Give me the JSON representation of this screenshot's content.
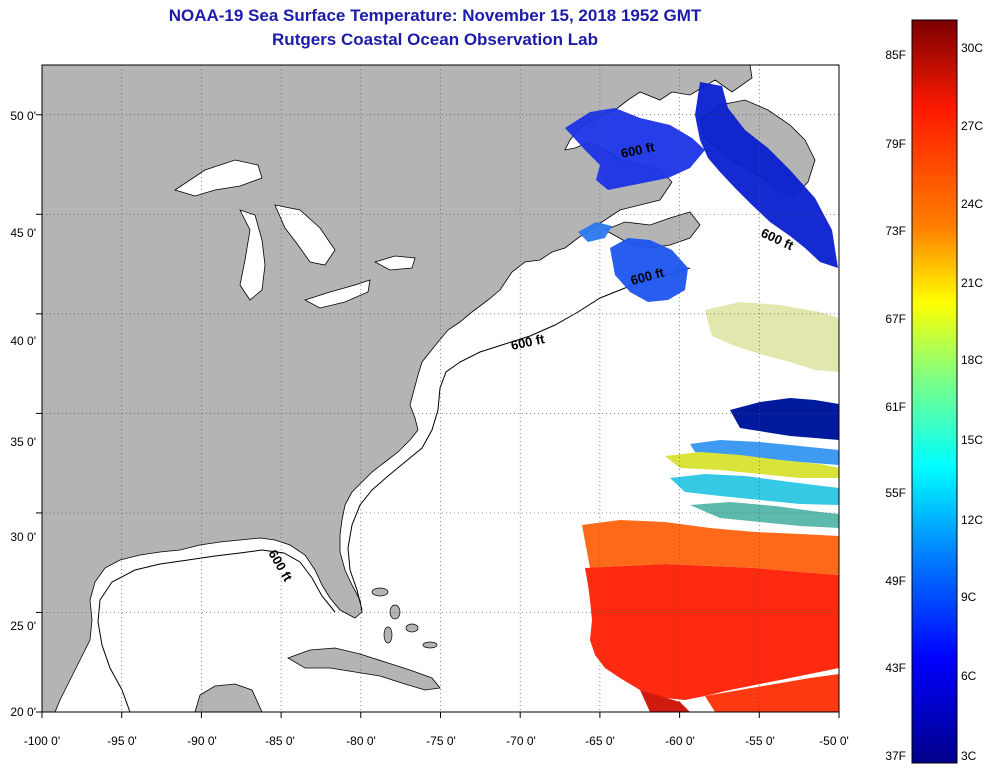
{
  "title": {
    "line1": "NOAA-19 Sea Surface Temperature:  November 15, 2018 1952 GMT",
    "line2": "Rutgers Coastal Ocean Observation Lab"
  },
  "map": {
    "lon_range": [
      -100,
      -50
    ],
    "lat_range": [
      20,
      52.5
    ],
    "x_ticks": [
      "-100 0'",
      "-95 0'",
      "-90 0'",
      "-85 0'",
      "-80 0'",
      "-75 0'",
      "-70 0'",
      "-65 0'",
      "-60 0'",
      "-55 0'",
      "-50 0'"
    ],
    "y_ticks": [
      "20 0'",
      "25 0'",
      "30 0'",
      "35 0'",
      "40 0'",
      "45 0'",
      "50 0'"
    ],
    "contour_label": "600 ft",
    "land_color": "#b4b4b4",
    "grid": true
  },
  "colorbar": {
    "fahrenheit": [
      "85F",
      "79F",
      "73F",
      "67F",
      "61F",
      "55F",
      "49F",
      "43F",
      "37F"
    ],
    "celsius": [
      "30C",
      "27C",
      "24C",
      "21C",
      "18C",
      "15C",
      "12C",
      "9C",
      "6C",
      "3C"
    ],
    "colors": [
      "#7a0000",
      "#ff1a00",
      "#ff8000",
      "#ffff00",
      "#80ff80",
      "#00ffff",
      "#0080ff",
      "#0000ff",
      "#00008a"
    ]
  }
}
